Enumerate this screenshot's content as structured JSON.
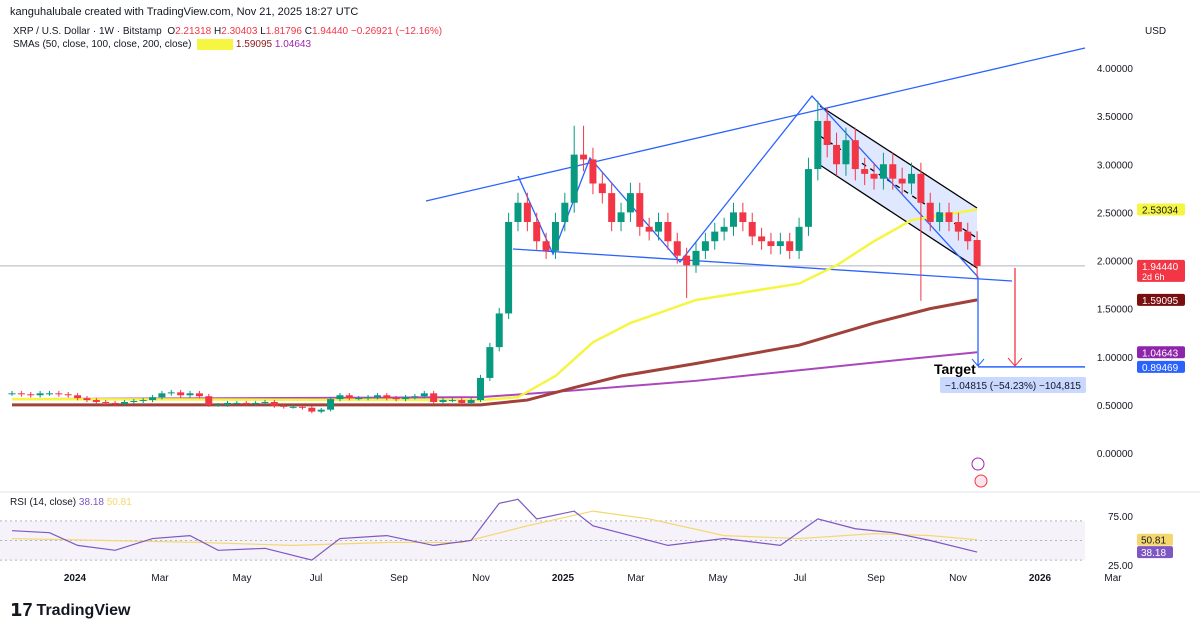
{
  "header": {
    "credit": "kanguhalubale created with TradingView.com, Nov 21, 2025 18:27 UTC",
    "symbol": "XRP / U.S. Dollar · 1W · Bitstamp",
    "o_label": "O",
    "o": "2.21318",
    "h_label": "H",
    "h": "2.30403",
    "l_label": "L",
    "l": "1.81796",
    "c_label": "C",
    "c": "1.94440",
    "change": "−0.26921 (−12.16%)",
    "sma_label": "SMAs (50, close, 100, close, 200, close)",
    "sma50": "2.53034",
    "sma100": "1.59095",
    "sma200": "1.04643"
  },
  "rsi_legend": {
    "label": "RSI (14, close)",
    "rsi": "38.18",
    "ma": "50.81"
  },
  "brand": "TradingView",
  "colors": {
    "up": "#089981",
    "down": "#f23645",
    "sma50": "#f5f542",
    "sma100": "#a0413a",
    "sma200": "#ab47bc",
    "drawing": "#2962ff",
    "rsi": "#7e57c2",
    "rsi_ma": "#f5d76e"
  },
  "chart_data": {
    "type": "candlestick",
    "currency": "USD",
    "y_ticks": [
      "4.00000",
      "3.50000",
      "3.00000",
      "2.50000",
      "2.00000",
      "1.50000",
      "1.00000",
      "0.50000",
      "0.00000"
    ],
    "ylim": [
      0,
      4.2
    ],
    "x_ticks": [
      "2024",
      "Mar",
      "May",
      "Jul",
      "Sep",
      "Nov",
      "2025",
      "Mar",
      "May",
      "Jul",
      "Sep",
      "Nov",
      "2026",
      "Mar"
    ],
    "closes": [
      0.62,
      0.61,
      0.6,
      0.62,
      0.62,
      0.61,
      0.6,
      0.57,
      0.55,
      0.53,
      0.52,
      0.51,
      0.53,
      0.54,
      0.55,
      0.58,
      0.62,
      0.63,
      0.6,
      0.62,
      0.59,
      0.5,
      0.5,
      0.52,
      0.52,
      0.51,
      0.52,
      0.53,
      0.49,
      0.48,
      0.48,
      0.47,
      0.43,
      0.45,
      0.56,
      0.6,
      0.57,
      0.57,
      0.58,
      0.6,
      0.57,
      0.56,
      0.58,
      0.59,
      0.62,
      0.53,
      0.55,
      0.55,
      0.52,
      0.55,
      0.78,
      1.1,
      1.45,
      2.4,
      2.6,
      2.4,
      2.2,
      2.1,
      2.4,
      2.6,
      3.1,
      3.05,
      2.8,
      2.7,
      2.4,
      2.5,
      2.7,
      2.35,
      2.3,
      2.4,
      2.2,
      2.05,
      1.95,
      2.1,
      2.2,
      2.3,
      2.35,
      2.5,
      2.4,
      2.25,
      2.2,
      2.15,
      2.2,
      2.1,
      2.35,
      2.95,
      3.45,
      3.2,
      3.0,
      3.25,
      2.95,
      2.9,
      2.85,
      3.0,
      2.85,
      2.8,
      2.9,
      2.6,
      2.4,
      2.5,
      2.4,
      2.3,
      2.2,
      1.9444
    ],
    "wick_overrides": {
      "60": {
        "h": 3.4
      },
      "61": {
        "h": 3.4
      },
      "72": {
        "l": 1.61
      },
      "86": {
        "h": 3.66
      },
      "97": {
        "l": 1.58
      },
      "103": {
        "o": 2.21318,
        "h": 2.30403,
        "l": 1.81796
      }
    },
    "sma50": [
      [
        0,
        0.56
      ],
      [
        50,
        0.55
      ],
      [
        54,
        0.58
      ],
      [
        58,
        0.8
      ],
      [
        62,
        1.15
      ],
      [
        66,
        1.35
      ],
      [
        73,
        1.59
      ],
      [
        84,
        1.76
      ],
      [
        88,
        1.95
      ],
      [
        92,
        2.2
      ],
      [
        96,
        2.42
      ],
      [
        103,
        2.53034
      ]
    ],
    "sma100": [
      [
        0,
        0.5
      ],
      [
        50,
        0.5
      ],
      [
        55,
        0.55
      ],
      [
        60,
        0.68
      ],
      [
        65,
        0.8
      ],
      [
        73,
        0.93
      ],
      [
        84,
        1.12
      ],
      [
        92,
        1.35
      ],
      [
        98,
        1.5
      ],
      [
        103,
        1.59095
      ]
    ],
    "sma200": [
      [
        0,
        0.56
      ],
      [
        50,
        0.58
      ],
      [
        60,
        0.65
      ],
      [
        73,
        0.75
      ],
      [
        84,
        0.86
      ],
      [
        95,
        0.97
      ],
      [
        103,
        1.04643
      ]
    ],
    "price_labels": [
      {
        "value": "2.53034",
        "color": "#f5f542",
        "text": "#131722"
      },
      {
        "value": "1.94440",
        "sub": "2d 6h",
        "color": "#f23645",
        "text": "#fff"
      },
      {
        "value": "1.59095",
        "color": "#7a0f0f",
        "text": "#fff"
      },
      {
        "value": "1.04643",
        "color": "#8e24aa",
        "text": "#fff"
      },
      {
        "value": "0.89469",
        "color": "#2962ff",
        "text": "#fff"
      }
    ],
    "target": {
      "label": "Target",
      "value": 0.89469,
      "measure": "−1.04815 (−54.23%) −104,815"
    },
    "rsi": {
      "ticks": [
        "75.00",
        "25.00"
      ],
      "values": [
        [
          0,
          60
        ],
        [
          4,
          58
        ],
        [
          7,
          45
        ],
        [
          11,
          40
        ],
        [
          15,
          52
        ],
        [
          19,
          55
        ],
        [
          22,
          40
        ],
        [
          27,
          42
        ],
        [
          32,
          30
        ],
        [
          35,
          52
        ],
        [
          40,
          55
        ],
        [
          45,
          45
        ],
        [
          49,
          50
        ],
        [
          52,
          88
        ],
        [
          54,
          92
        ],
        [
          56,
          72
        ],
        [
          60,
          80
        ],
        [
          62,
          65
        ],
        [
          66,
          55
        ],
        [
          70,
          45
        ],
        [
          76,
          52
        ],
        [
          82,
          45
        ],
        [
          86,
          72
        ],
        [
          90,
          62
        ],
        [
          94,
          58
        ],
        [
          98,
          50
        ],
        [
          103,
          38.18
        ]
      ],
      "ma": [
        [
          0,
          52
        ],
        [
          10,
          50
        ],
        [
          20,
          48
        ],
        [
          30,
          45
        ],
        [
          40,
          48
        ],
        [
          48,
          48
        ],
        [
          55,
          65
        ],
        [
          62,
          80
        ],
        [
          68,
          72
        ],
        [
          76,
          55
        ],
        [
          84,
          52
        ],
        [
          92,
          57
        ],
        [
          98,
          55
        ],
        [
          103,
          50.81
        ]
      ]
    }
  }
}
